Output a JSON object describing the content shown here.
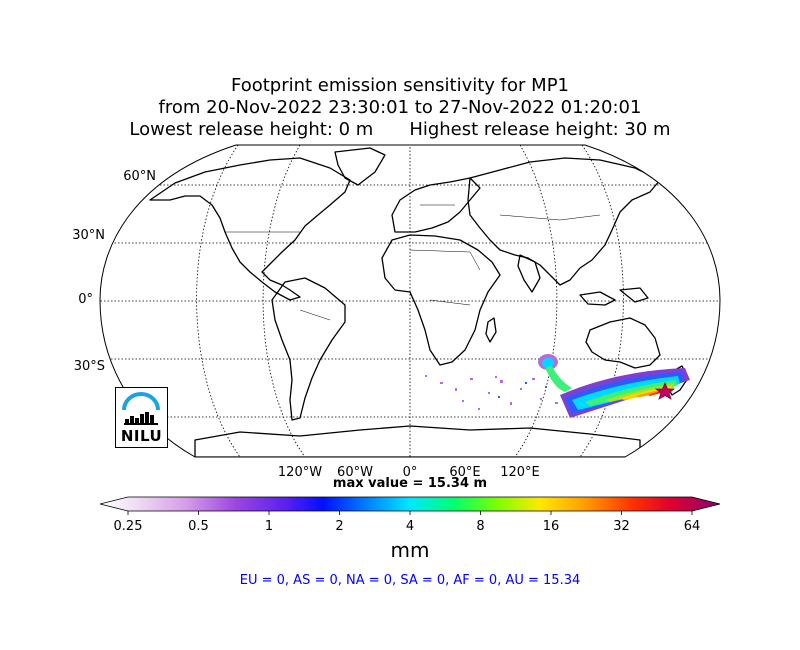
{
  "title": {
    "line1": "Footprint emission sensitivity for MP1",
    "line2": "from 20-Nov-2022 23:30:01 to 27-Nov-2022 01:20:01",
    "line3_left": "Lowest release height: 0 m",
    "line3_right": "Highest release height: 30 m"
  },
  "map": {
    "projection": "robinson",
    "lat_labels": [
      "60°N",
      "30°N",
      "0°",
      "30°S"
    ],
    "lon_labels": [
      "120°W",
      "60°W",
      "0°",
      "60°E",
      "120°E"
    ],
    "plume_colors": [
      "#b06ee0",
      "#7f3fd0",
      "#2b5bff",
      "#00d9ff",
      "#3cf07a",
      "#9be52a",
      "#ffd400",
      "#ff9a00",
      "#ff2a00",
      "#c20060"
    ],
    "release_marker": "star-icon"
  },
  "max_value_text": "max value = 15.34 m",
  "colorbar": {
    "ticks": [
      "0.25",
      "0.5",
      "1",
      "2",
      "4",
      "8",
      "16",
      "32",
      "64"
    ],
    "units": "mm",
    "colors": [
      "#ffffff",
      "#e8c6f0",
      "#c07be0",
      "#8a2be2",
      "#2020ff",
      "#0070ff",
      "#00d0ff",
      "#00ff90",
      "#40ff20",
      "#b0f000",
      "#ffe000",
      "#ffa000",
      "#ff5000",
      "#ff0000",
      "#d00050",
      "#a00070"
    ]
  },
  "regions_text": "EU = 0,  AS = 0,  NA = 0,  SA = 0,  AF = 0,  AU = 15.34",
  "logo": {
    "text": "NILU"
  }
}
